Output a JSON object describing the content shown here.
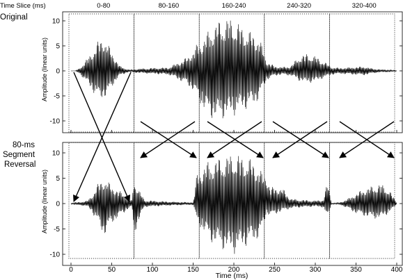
{
  "header": {
    "label": "Time Slice (ms)"
  },
  "slices": [
    "0-80",
    "80-160",
    "160-240",
    "240-320",
    "320-400"
  ],
  "panels": {
    "top_title": "Original",
    "bottom_title_lines": [
      "80-ms",
      "Segment",
      "Reversal"
    ]
  },
  "colors": {
    "ink": "#000000",
    "background": "#ffffff"
  },
  "chart_data": [
    {
      "type": "line",
      "title": "Original",
      "xlabel": "",
      "ylabel": "Amplitude (linear units)",
      "xlim": [
        0,
        400
      ],
      "ylim": [
        -12,
        12
      ],
      "yticks": [
        -10,
        -5,
        0,
        5,
        10
      ],
      "xticks": [
        0,
        50,
        100,
        150,
        200,
        250,
        300,
        350,
        400
      ],
      "series": [
        {
          "envelope_x": [
            0,
            5,
            10,
            20,
            30,
            35,
            40,
            45,
            50,
            55,
            60,
            70,
            75,
            80,
            100,
            120,
            140,
            150,
            155,
            160,
            165,
            170,
            180,
            190,
            200,
            210,
            220,
            230,
            235,
            240,
            250,
            260,
            270,
            280,
            290,
            300,
            310,
            320,
            330,
            340,
            350,
            360,
            370,
            380,
            390,
            400
          ],
          "envelope_max": [
            0,
            0,
            0.5,
            2.5,
            5,
            6.5,
            7,
            5.5,
            4,
            2.5,
            1,
            0.3,
            0.2,
            0.4,
            0.6,
            0.7,
            2.5,
            4,
            5.5,
            6,
            7,
            8.5,
            10,
            10.8,
            10.5,
            9,
            8,
            7,
            5,
            2,
            1,
            0.8,
            1,
            3,
            3.5,
            3,
            2,
            0.8,
            0.6,
            0.7,
            0.8,
            0.9,
            0.5,
            0.3,
            0.2,
            0.1
          ],
          "envelope_min": [
            0,
            0,
            -0.5,
            -2.5,
            -5,
            -6,
            -5.5,
            -5,
            -3.5,
            -2,
            -1,
            -0.3,
            -0.2,
            -0.4,
            -0.6,
            -0.8,
            -2.5,
            -4,
            -5.5,
            -7,
            -8.5,
            -9.5,
            -10,
            -9.5,
            -9,
            -8,
            -7.5,
            -6,
            -4,
            -2,
            -1,
            -0.8,
            -1,
            -2,
            -2.5,
            -2.2,
            -1.5,
            -0.8,
            -0.6,
            -0.7,
            -0.8,
            -0.9,
            -0.5,
            -0.3,
            -0.2,
            -0.1
          ]
        }
      ]
    },
    {
      "type": "line",
      "title": "80-ms Segment Reversal",
      "xlabel": "Time (ms)",
      "ylabel": "Amplitude (linear units)",
      "xlim": [
        0,
        400
      ],
      "ylim": [
        -12,
        12
      ],
      "yticks": [
        -10,
        -5,
        0,
        5,
        10
      ],
      "xticks": [
        0,
        50,
        100,
        150,
        200,
        250,
        300,
        350,
        400
      ],
      "series": [
        {
          "envelope_x": [
            0,
            5,
            10,
            20,
            25,
            30,
            35,
            40,
            45,
            50,
            60,
            70,
            75,
            77,
            80,
            90,
            100,
            120,
            140,
            150,
            155,
            160,
            165,
            170,
            180,
            190,
            200,
            210,
            220,
            230,
            235,
            240,
            245,
            250,
            260,
            270,
            280,
            290,
            300,
            310,
            315,
            320,
            330,
            340,
            350,
            360,
            370,
            380,
            390,
            400
          ],
          "envelope_max": [
            0.1,
            0.2,
            0.3,
            0.6,
            1.5,
            3,
            4.5,
            5,
            4.5,
            3.5,
            2.5,
            1.2,
            0.6,
            5,
            4,
            0.7,
            0.6,
            0.4,
            0.3,
            0.2,
            6.3,
            7,
            8,
            8.5,
            9,
            9.5,
            10,
            9.5,
            9,
            7.5,
            6,
            6,
            3,
            3.5,
            3,
            1,
            0.8,
            0.7,
            0.6,
            0.8,
            4.5,
            0.1,
            0.2,
            1,
            2,
            3,
            3.5,
            4,
            3,
            0.2
          ],
          "envelope_min": [
            -0.1,
            -0.2,
            -0.3,
            -0.6,
            -1.5,
            -3,
            -4.5,
            -6.5,
            -5.5,
            -4,
            -2.5,
            -1.2,
            -0.6,
            -6.5,
            -5,
            -0.7,
            -0.6,
            -0.4,
            -0.3,
            -0.2,
            -4,
            -5,
            -6,
            -7.5,
            -8.5,
            -9.5,
            -10,
            -9,
            -8,
            -7,
            -5.5,
            -2,
            -2.5,
            -2.2,
            -1.5,
            -1,
            -0.8,
            -0.7,
            -0.6,
            -0.8,
            -3,
            -0.1,
            -0.2,
            -1,
            -2,
            -2.5,
            -3,
            -3,
            -2,
            -0.2
          ]
        }
      ]
    }
  ]
}
